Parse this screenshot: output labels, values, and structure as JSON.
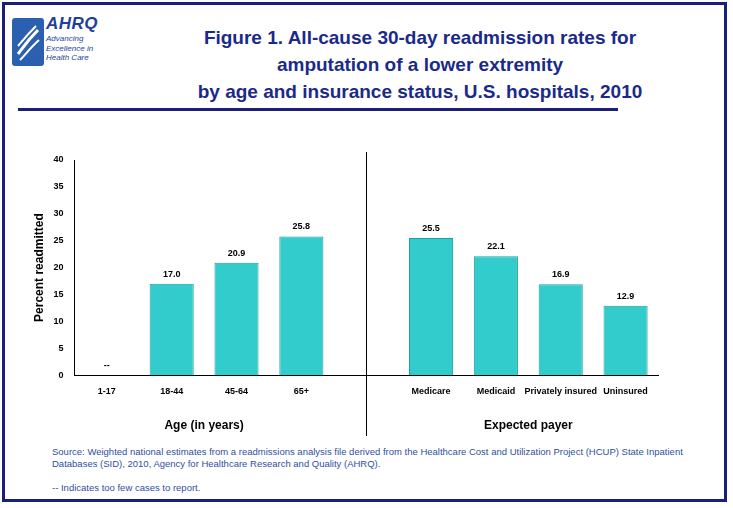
{
  "chart_data": {
    "type": "bar",
    "title": [
      "Figure 1. All-cause 30-day readmission rates for",
      "amputation of a lower extremity",
      "by age and insurance status, U.S. hospitals, 2010"
    ],
    "logo": {
      "text": "AHRQ",
      "tagline": "Advancing Excellence in Health Care"
    },
    "y_label": "Percent readmitted",
    "categories": [
      "1-17",
      "18-44",
      "45-64",
      "65+",
      null,
      "Medicare",
      "Medicaid",
      "Privately insured",
      "Uninsured"
    ],
    "values": [
      null,
      17.0,
      20.9,
      25.8,
      null,
      25.5,
      22.1,
      16.9,
      12.9
    ],
    "value_labels": [
      "--",
      "17.0",
      "20.9",
      "25.8",
      null,
      "25.5",
      "22.1",
      "16.9",
      "12.9"
    ],
    "group_labels": [
      "Age (in years)",
      "Expected payer"
    ],
    "color": "#33cccc",
    "ylim": [
      0,
      40
    ],
    "yticks": [
      0,
      5,
      10,
      15,
      20,
      25,
      30,
      35,
      40
    ],
    "grid": false,
    "data_labels": true,
    "source": "Source: Weighted national estimates from a readmissions analysis file derived from the Healthcare Cost and Utilization Project (HCUP) State Inpatient Databases (SID), 2010, Agency for Healthcare Research and Quality (AHRQ).",
    "note": "-- Indicates too few cases to report."
  }
}
